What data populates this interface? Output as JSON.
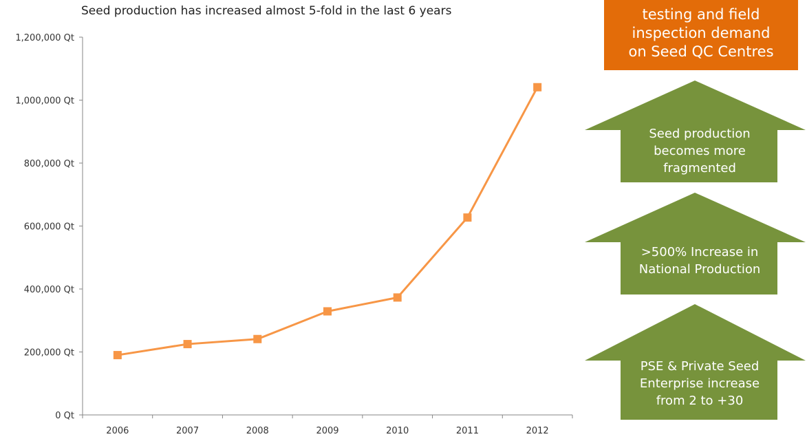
{
  "title": "Seed production has increased almost 5-fold in the last 6 years",
  "chart_data": {
    "type": "line",
    "title": "Seed production has increased almost 5-fold in the last 6 years",
    "xlabel": "",
    "ylabel": "",
    "x": [
      "2006",
      "2007",
      "2008",
      "2009",
      "2010",
      "2011",
      "2012"
    ],
    "series": [
      {
        "values": [
          190000,
          225000,
          241000,
          329000,
          373000,
          627000,
          1041000
        ]
      }
    ],
    "ylim": [
      0,
      1200000
    ],
    "yticks": [
      "0 Qt",
      "200,000 Qt",
      "400,000 Qt",
      "600,000 Qt",
      "800,000 Qt",
      "1,000,000 Qt",
      "1,200,000 Qt"
    ],
    "grid": false,
    "marker": "square",
    "color": "#f79646"
  },
  "callouts": {
    "top_box": {
      "lines": [
        "testing and field",
        "inspection demand",
        "on Seed QC Centres"
      ],
      "color": "#e36c09"
    },
    "arrows": [
      {
        "lines": [
          "Seed production",
          "becomes more",
          "fragmented"
        ]
      },
      {
        "lines": [
          ">500% Increase in",
          "National Production"
        ]
      },
      {
        "lines": [
          "PSE & Private Seed",
          "Enterprise increase",
          "from 2 to +30"
        ]
      }
    ],
    "arrow_color": "#77933c"
  }
}
